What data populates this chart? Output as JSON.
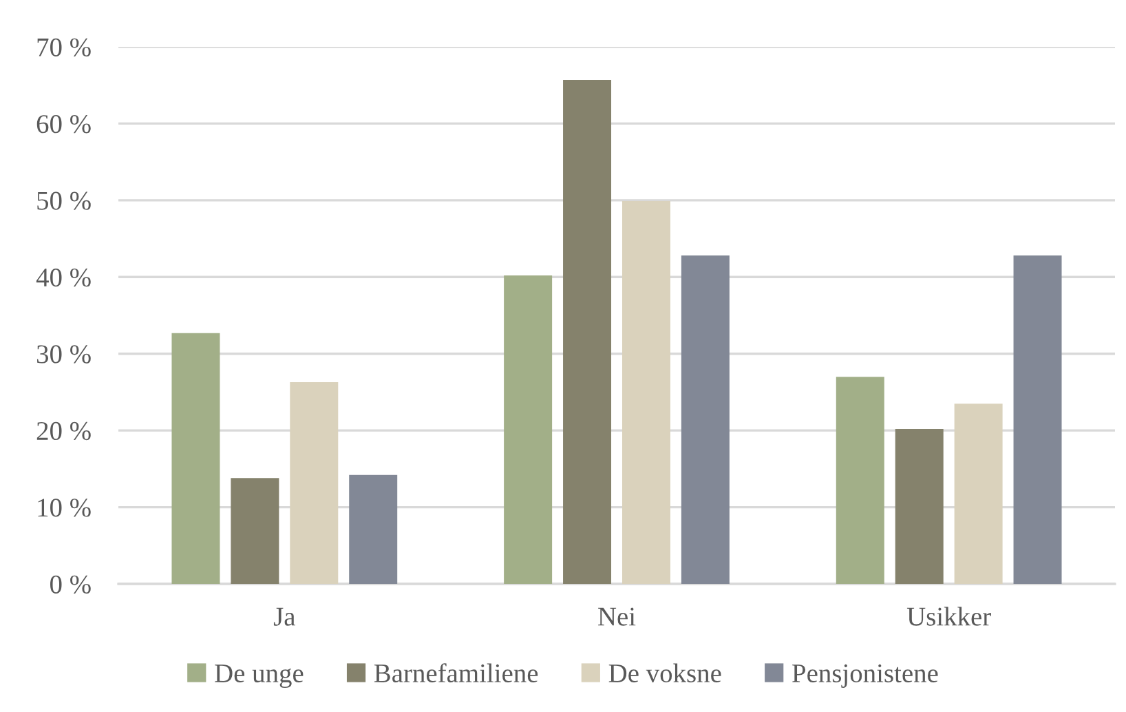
{
  "chart_data": {
    "type": "bar",
    "categories": [
      "Ja",
      "Nei",
      "Usikker"
    ],
    "series": [
      {
        "name": "De unge",
        "color": "#a2af88",
        "values": [
          32.7,
          40.2,
          27.0
        ]
      },
      {
        "name": "Barnefamiliene",
        "color": "#85826c",
        "values": [
          13.8,
          65.7,
          20.2
        ]
      },
      {
        "name": "De voksne",
        "color": "#dad2bc",
        "values": [
          26.3,
          49.9,
          23.5
        ]
      },
      {
        "name": "Pensjonistene",
        "color": "#828896",
        "values": [
          14.2,
          42.8,
          42.8
        ]
      }
    ],
    "ylim": [
      0,
      70
    ],
    "yticks": [
      {
        "value": 0,
        "label": "0 %"
      },
      {
        "value": 10,
        "label": "10 %"
      },
      {
        "value": 20,
        "label": "20 %"
      },
      {
        "value": 30,
        "label": "30 %"
      },
      {
        "value": 40,
        "label": "40 %"
      },
      {
        "value": 50,
        "label": "50 %"
      },
      {
        "value": 60,
        "label": "60 %"
      },
      {
        "value": 70,
        "label": "70 %"
      }
    ],
    "grid": "y",
    "legend": "bottom"
  }
}
